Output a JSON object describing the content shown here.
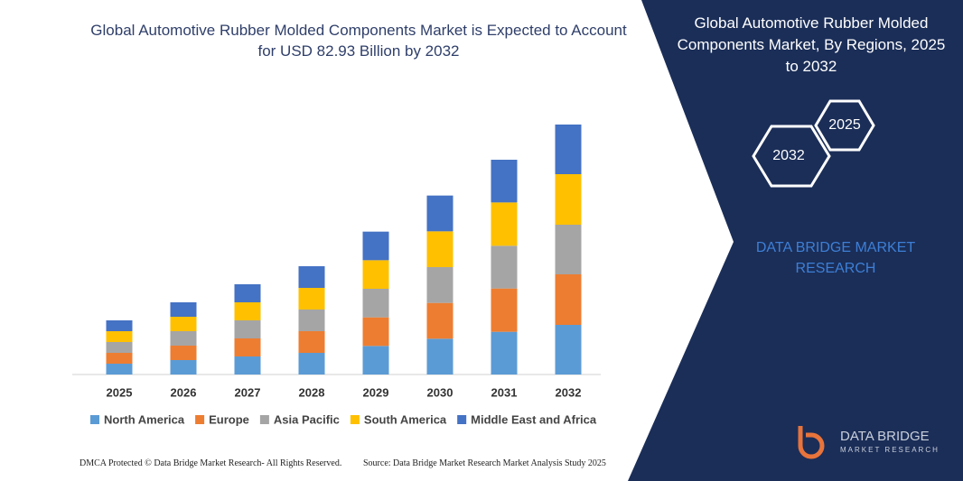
{
  "chart_data": {
    "type": "bar",
    "stacked": true,
    "title": "Global Automotive Rubber Molded Components Market is Expected to Account for USD 82.93 Billion by 2032",
    "categories": [
      "2025",
      "2026",
      "2027",
      "2028",
      "2029",
      "2030",
      "2031",
      "2032"
    ],
    "series": [
      {
        "name": "North America",
        "color": "#5b9bd5",
        "values": [
          3.6,
          4.8,
          6.0,
          7.2,
          9.5,
          11.9,
          14.2,
          16.5
        ]
      },
      {
        "name": "Europe",
        "color": "#ed7d31",
        "values": [
          3.6,
          4.8,
          6.0,
          7.2,
          9.5,
          11.9,
          14.4,
          16.8
        ]
      },
      {
        "name": "Asia Pacific",
        "color": "#a5a5a5",
        "values": [
          3.6,
          4.8,
          6.0,
          7.2,
          9.5,
          11.9,
          14.2,
          16.5
        ]
      },
      {
        "name": "South America",
        "color": "#ffc000",
        "values": [
          3.6,
          4.8,
          6.0,
          7.2,
          9.5,
          11.9,
          14.4,
          16.8
        ]
      },
      {
        "name": "Middle East and Africa",
        "color": "#4472c4",
        "values": [
          3.6,
          4.8,
          6.0,
          7.2,
          9.5,
          11.9,
          14.2,
          16.5
        ]
      }
    ]
  },
  "panel": {
    "title": "Global Automotive Rubber Molded Components Market, By Regions, 2025 to 2032",
    "hexagons": [
      "2025",
      "2032"
    ],
    "brand": "DATA BRIDGE MARKET RESEARCH",
    "logo": {
      "name": "DATA BRIDGE",
      "tagline": "MARKET RESEARCH"
    }
  },
  "footer": {
    "left": "DMCA Protected © Data Bridge Market Research- All Rights Reserved.",
    "right": "Source: Data Bridge Market Research Market Analysis Study 2025"
  }
}
